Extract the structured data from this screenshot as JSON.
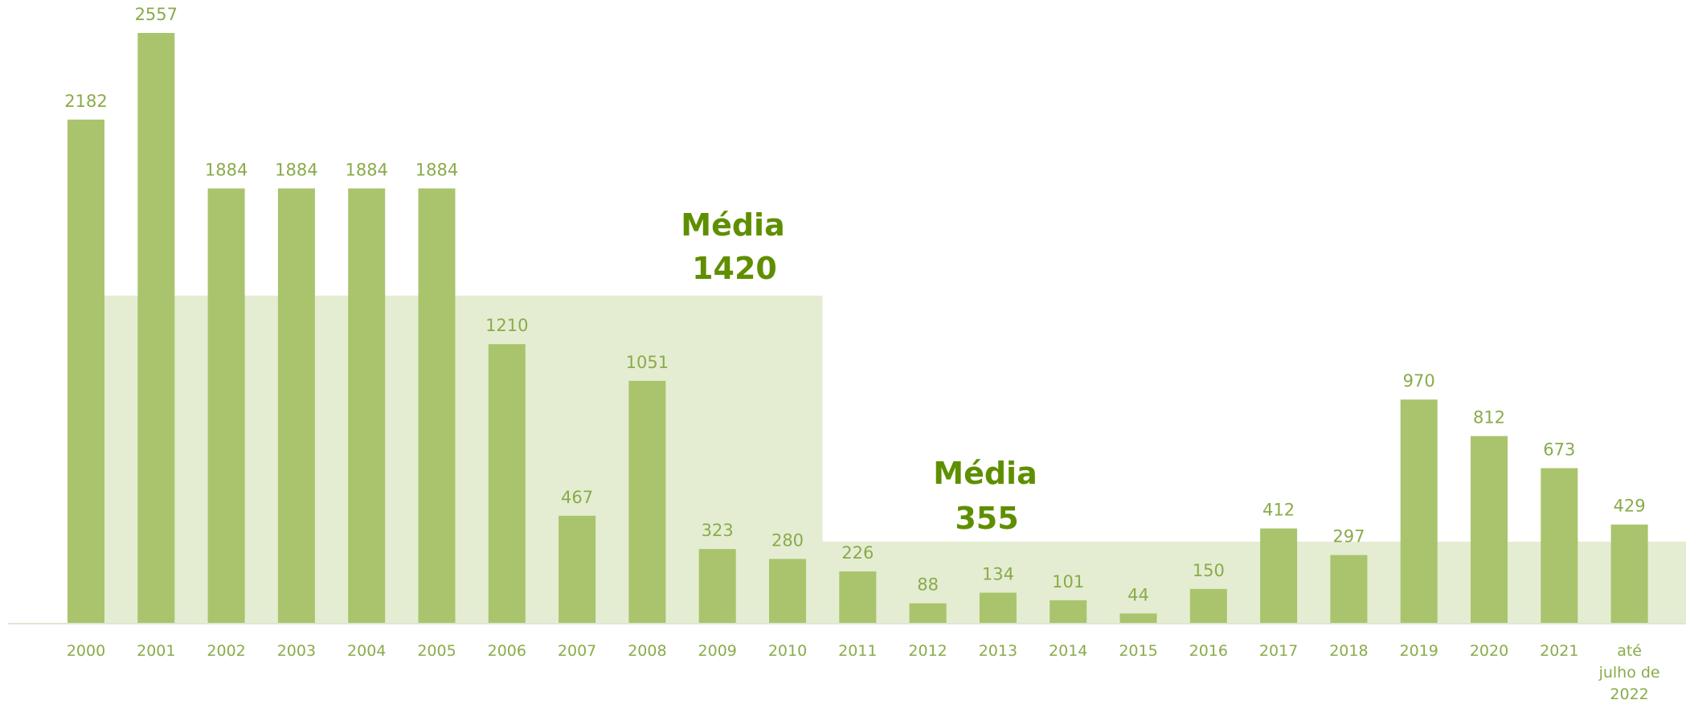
{
  "chart_data": {
    "type": "bar",
    "categories": [
      "2000",
      "2001",
      "2002",
      "2003",
      "2004",
      "2005",
      "2006",
      "2007",
      "2008",
      "2009",
      "2010",
      "2011",
      "2012",
      "2013",
      "2014",
      "2015",
      "2016",
      "2017",
      "2018",
      "2019",
      "2020",
      "2021",
      "até julho de 2022"
    ],
    "tick_lines": [
      [
        "2000"
      ],
      [
        "2001"
      ],
      [
        "2002"
      ],
      [
        "2003"
      ],
      [
        "2004"
      ],
      [
        "2005"
      ],
      [
        "2006"
      ],
      [
        "2007"
      ],
      [
        "2008"
      ],
      [
        "2009"
      ],
      [
        "2010"
      ],
      [
        "2011"
      ],
      [
        "2012"
      ],
      [
        "2013"
      ],
      [
        "2014"
      ],
      [
        "2015"
      ],
      [
        "2016"
      ],
      [
        "2017"
      ],
      [
        "2018"
      ],
      [
        "2019"
      ],
      [
        "2020"
      ],
      [
        "2021"
      ],
      [
        "até",
        "julho de",
        "2022"
      ]
    ],
    "values": [
      2182,
      2557,
      1884,
      1884,
      1884,
      1884,
      1210,
      467,
      1051,
      323,
      280,
      226,
      88,
      134,
      101,
      44,
      150,
      412,
      297,
      970,
      812,
      673,
      429
    ],
    "ylim": [
      0,
      2720
    ],
    "averages": [
      {
        "label": "Média",
        "value_label": "1420",
        "value": 1420,
        "from_category": "2000",
        "to_category": "2010"
      },
      {
        "label": "Média",
        "value_label": "355",
        "value": 355,
        "from_category": "2011",
        "to_category": "até julho de 2022"
      }
    ],
    "colors": {
      "bar": "#a9c46c",
      "band": "#e4edd2",
      "label": "#8aab4a",
      "average_text": "#5f8f00"
    },
    "grid": false,
    "legend": "none"
  }
}
